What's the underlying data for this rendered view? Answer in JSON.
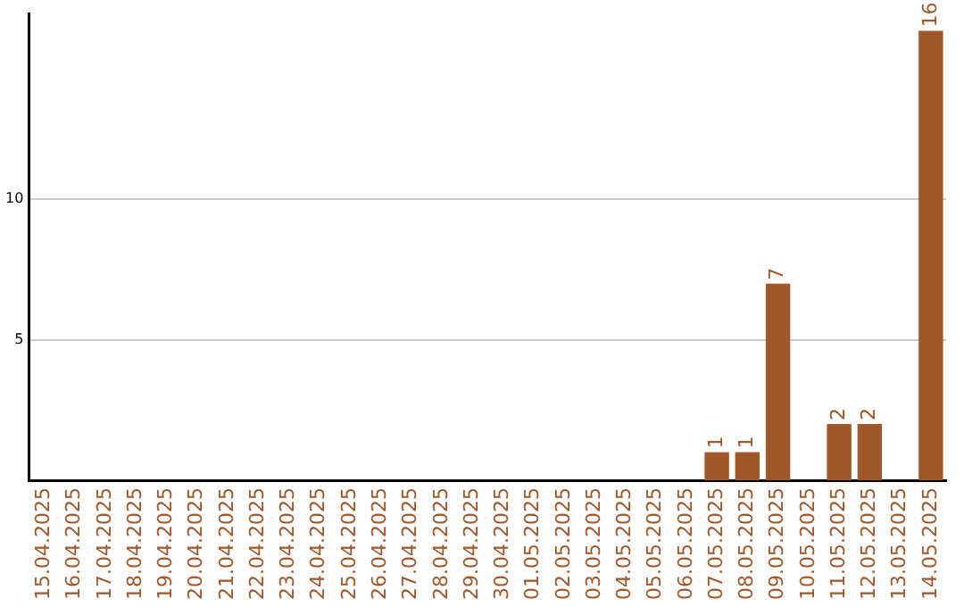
{
  "chart_data": {
    "type": "bar",
    "categories": [
      "15.04.2025",
      "16.04.2025",
      "17.04.2025",
      "18.04.2025",
      "19.04.2025",
      "20.04.2025",
      "21.04.2025",
      "22.04.2025",
      "23.04.2025",
      "24.04.2025",
      "25.04.2025",
      "26.04.2025",
      "27.04.2025",
      "28.04.2025",
      "29.04.2025",
      "30.04.2025",
      "01.05.2025",
      "02.05.2025",
      "03.05.2025",
      "04.05.2025",
      "05.05.2025",
      "06.05.2025",
      "07.05.2025",
      "08.05.2025",
      "09.05.2025",
      "10.05.2025",
      "11.05.2025",
      "12.05.2025",
      "13.05.2025",
      "14.05.2025"
    ],
    "values": [
      0,
      0,
      0,
      0,
      0,
      0,
      0,
      0,
      0,
      0,
      0,
      0,
      0,
      0,
      0,
      0,
      0,
      0,
      0,
      0,
      0,
      0,
      1,
      1,
      7,
      0,
      2,
      2,
      0,
      16
    ],
    "value_labels": [
      null,
      null,
      null,
      null,
      null,
      null,
      null,
      null,
      null,
      null,
      null,
      null,
      null,
      null,
      null,
      null,
      null,
      null,
      null,
      null,
      null,
      null,
      "1",
      "1",
      "7",
      null,
      "2",
      "2",
      null,
      "16"
    ],
    "color": "#a0572a",
    "ylim": [
      0,
      16.6
    ],
    "yticks": [
      5,
      10
    ],
    "grid": "y",
    "legend": false
  }
}
